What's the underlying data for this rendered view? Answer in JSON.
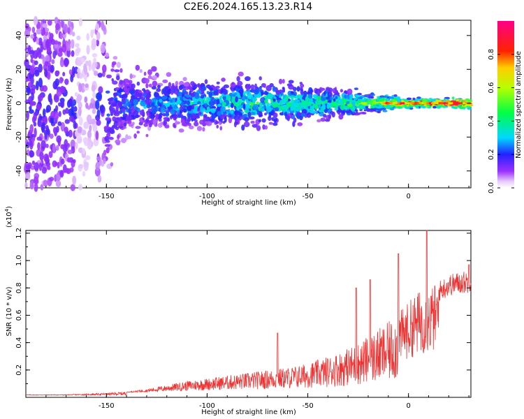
{
  "title": "C2E6.2024.165.13.23.R14",
  "chart_data": [
    {
      "type": "heatmap",
      "xlabel": "Height of straight line (km)",
      "ylabel": "Frequency (Hz)",
      "xlim": [
        -190,
        31
      ],
      "ylim": [
        -50,
        49
      ],
      "xticks": [
        -150,
        -100,
        -50,
        0
      ],
      "yticks": [
        -40,
        -20,
        0,
        20,
        40
      ],
      "colorbar": {
        "label": "Normalized spectral amplitude",
        "range": [
          0,
          1
        ],
        "ticks": [
          0.0,
          0.2,
          0.4,
          0.6,
          0.8
        ]
      },
      "description_points": [
        {
          "x": -185,
          "freq_spread": 48,
          "amp": 0.15
        },
        {
          "x": -160,
          "freq_spread": 45,
          "amp": 0.15
        },
        {
          "x": -140,
          "freq_spread": 14,
          "amp": 0.2
        },
        {
          "x": -120,
          "freq_spread": 10,
          "amp": 0.25
        },
        {
          "x": -100,
          "freq_spread": 10,
          "amp": 0.3
        },
        {
          "x": -80,
          "freq_spread": 9,
          "amp": 0.35
        },
        {
          "x": -60,
          "freq_spread": 8,
          "amp": 0.35
        },
        {
          "x": -40,
          "freq_spread": 7,
          "amp": 0.35
        },
        {
          "x": -20,
          "freq_spread": 4,
          "amp": 0.45
        },
        {
          "x": 0,
          "freq_spread": 2,
          "amp": 0.75
        },
        {
          "x": 20,
          "freq_spread": 2,
          "amp": 0.85
        },
        {
          "x": 30,
          "freq_spread": 2,
          "amp": 0.85
        }
      ]
    },
    {
      "type": "line",
      "xlabel": "Height of straight line (km)",
      "ylabel": "SNR (10 * v/v)",
      "yscale_label": "(x10",
      "yscale_exp": "4",
      "xlim": [
        -190,
        31
      ],
      "ylim": [
        0,
        1.22
      ],
      "xticks": [
        -150,
        -100,
        -50,
        0
      ],
      "yticks": [
        0.2,
        0.4,
        0.6,
        0.8,
        1.0,
        1.2
      ],
      "series": [
        {
          "color": "#ee3333",
          "x": [
            -190,
            -170,
            -150,
            -140,
            -130,
            -120,
            -110,
            -100,
            -90,
            -80,
            -70,
            -60,
            -50,
            -40,
            -30,
            -25,
            -20,
            -15,
            -10,
            -5,
            0,
            5,
            10,
            15,
            20,
            25,
            31
          ],
          "y": [
            0.02,
            0.02,
            0.03,
            0.04,
            0.06,
            0.09,
            0.12,
            0.14,
            0.16,
            0.18,
            0.2,
            0.22,
            0.25,
            0.3,
            0.36,
            0.4,
            0.45,
            0.5,
            0.55,
            0.62,
            0.7,
            0.78,
            0.8,
            0.85,
            0.9,
            0.92,
            0.93
          ],
          "peaks": [
            {
              "x": -65,
              "y": 0.47
            },
            {
              "x": -26,
              "y": 0.8
            },
            {
              "x": -19,
              "y": 0.86
            },
            {
              "x": -5,
              "y": 1.05
            },
            {
              "x": 9,
              "y": 1.22
            },
            {
              "x": 30,
              "y": 0.97
            }
          ]
        }
      ]
    }
  ]
}
